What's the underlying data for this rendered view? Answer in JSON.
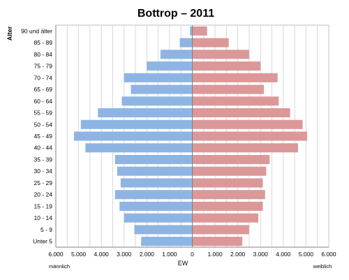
{
  "chart_data": {
    "type": "bar",
    "orientation": "horizontal",
    "title": "Bottrop – 2011",
    "ylabel": "Alter",
    "xlabel": "EW",
    "left_label": "männlich",
    "right_label": "weiblich",
    "categories": [
      "90 und älter",
      "85 - 89",
      "80 - 84",
      "75 - 79",
      "70 - 74",
      "65 - 69",
      "60 - 64",
      "55 - 59",
      "50 - 54",
      "45 - 49",
      "40 - 44",
      "35 - 39",
      "30 - 34",
      "25 - 29",
      "20 - 24",
      "15 - 19",
      "10 - 14",
      "5 - 9",
      "Unter 5"
    ],
    "series": [
      {
        "name": "männlich",
        "color": "#8eb4e3",
        "values": [
          100,
          550,
          1400,
          2000,
          3000,
          2700,
          3100,
          4150,
          4900,
          5200,
          4700,
          3400,
          3300,
          3150,
          3400,
          3200,
          3000,
          2550,
          2250
        ]
      },
      {
        "name": "weiblich",
        "color": "#dc9898",
        "values": [
          650,
          1600,
          2500,
          3000,
          3750,
          3150,
          3800,
          4300,
          4850,
          5050,
          4650,
          3400,
          3250,
          3100,
          3200,
          3100,
          2900,
          2500,
          2200
        ]
      }
    ],
    "xlim": [
      -6000,
      6000
    ],
    "x_ticks": [
      -6000,
      -5000,
      -4000,
      -3000,
      -2000,
      -1000,
      0,
      1000,
      2000,
      3000,
      4000,
      5000,
      6000
    ],
    "x_tick_labels": [
      "6.000",
      "5.000",
      "4.000",
      "3.000",
      "2.000",
      "1.000",
      "0",
      "1.000",
      "2.000",
      "3.000",
      "4.000",
      "5.000",
      "6.000"
    ],
    "grid": true,
    "minor_grid_step": 500
  }
}
